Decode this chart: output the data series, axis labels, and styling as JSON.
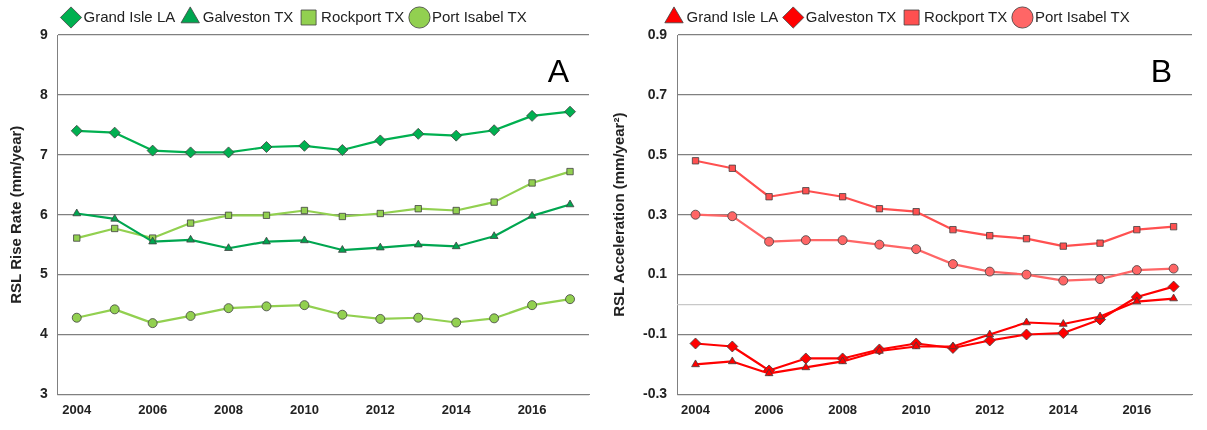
{
  "chart_data": [
    {
      "type": "line",
      "annotations": [
        "A"
      ],
      "ylabel": "RSL Rise Rate (mm/year)",
      "categories": [
        "2004",
        null,
        "2006",
        null,
        "2008",
        null,
        "2010",
        null,
        "2012",
        null,
        "2014",
        null,
        "2016",
        null
      ],
      "ylim": [
        3,
        9
      ],
      "yticks": [
        3,
        4,
        5,
        6,
        7,
        8,
        9
      ],
      "grid": "y",
      "legend": "top",
      "series": [
        {
          "name": "Grand Isle LA",
          "color": "#00b050",
          "marker": "diamond",
          "values": [
            7.4,
            7.37,
            7.07,
            7.04,
            7.04,
            7.13,
            7.15,
            7.08,
            7.24,
            7.35,
            7.32,
            7.41,
            7.65,
            7.72
          ]
        },
        {
          "name": "Galveston TX",
          "color": "#00a650",
          "marker": "triangle",
          "values": [
            6.02,
            5.93,
            5.55,
            5.58,
            5.44,
            5.55,
            5.57,
            5.41,
            5.45,
            5.5,
            5.47,
            5.64,
            5.98,
            6.17
          ]
        },
        {
          "name": "Rockport TX",
          "color": "#92d050",
          "marker": "square",
          "values": [
            5.61,
            5.77,
            5.61,
            5.86,
            5.99,
            5.99,
            6.07,
            5.97,
            6.02,
            6.1,
            6.07,
            6.21,
            6.53,
            6.72
          ]
        },
        {
          "name": "Port Isabel TX",
          "color": "#92d050",
          "marker": "circle",
          "values": [
            4.28,
            4.42,
            4.19,
            4.31,
            4.44,
            4.47,
            4.49,
            4.33,
            4.26,
            4.28,
            4.2,
            4.27,
            4.49,
            4.59
          ]
        }
      ]
    },
    {
      "type": "line",
      "annotations": [
        "B"
      ],
      "ylabel": "RSL Acceleration (mm/year²)",
      "categories": [
        "2004",
        null,
        "2006",
        null,
        "2008",
        null,
        "2010",
        null,
        "2012",
        null,
        "2014",
        null,
        "2016",
        null
      ],
      "ylim": [
        -0.3,
        0.9
      ],
      "yticks": [
        -0.3,
        -0.1,
        0.1,
        0.3,
        0.5,
        0.7,
        0.9
      ],
      "grid": "y",
      "legend": "top",
      "ref_lines": [
        {
          "axis": "y",
          "value": 0,
          "color": "#c8c8c8"
        }
      ],
      "series": [
        {
          "name": "Grand Isle LA",
          "color": "#ff0000",
          "marker": "triangle",
          "values": [
            -0.2,
            -0.19,
            -0.23,
            -0.21,
            -0.19,
            -0.155,
            -0.14,
            -0.14,
            -0.1,
            -0.06,
            -0.065,
            -0.04,
            0.01,
            0.02
          ]
        },
        {
          "name": "Galveston TX",
          "color": "#ff0000",
          "marker": "diamond",
          "values": [
            -0.13,
            -0.14,
            -0.22,
            -0.18,
            -0.18,
            -0.15,
            -0.13,
            -0.145,
            -0.12,
            -0.1,
            -0.095,
            -0.05,
            0.025,
            0.06
          ]
        },
        {
          "name": "Rockport TX",
          "color": "#ff5050",
          "marker": "square",
          "values": [
            0.48,
            0.455,
            0.36,
            0.38,
            0.36,
            0.32,
            0.31,
            0.25,
            0.23,
            0.22,
            0.195,
            0.205,
            0.25,
            0.26
          ]
        },
        {
          "name": "Port Isabel TX",
          "color": "#ff6666",
          "marker": "circle",
          "values": [
            0.3,
            0.295,
            0.21,
            0.215,
            0.215,
            0.2,
            0.185,
            0.135,
            0.11,
            0.1,
            0.08,
            0.085,
            0.115,
            0.12
          ]
        }
      ]
    }
  ]
}
